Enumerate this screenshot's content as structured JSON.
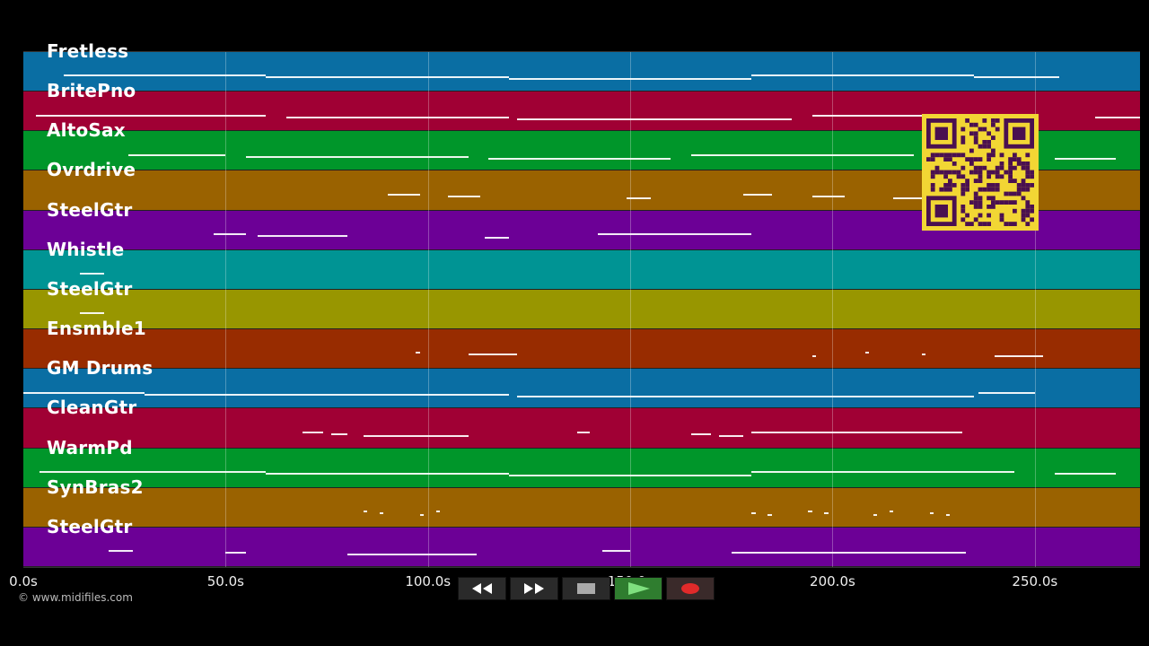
{
  "tracks": [
    {
      "name": "Fretless",
      "color": "#0a6ea3"
    },
    {
      "name": "BritePno",
      "color": "#a00034"
    },
    {
      "name": "AltoSax",
      "color": "#00962a"
    },
    {
      "name": "Ovrdrive",
      "color": "#9a6200"
    },
    {
      "name": "SteelGtr",
      "color": "#6c0096"
    },
    {
      "name": "Whistle",
      "color": "#009494"
    },
    {
      "name": "SteelGtr",
      "color": "#989600"
    },
    {
      "name": "Ensmble1",
      "color": "#982c00"
    },
    {
      "name": "GM Drums",
      "color": "#0a6ea3"
    },
    {
      "name": "CleanGtr",
      "color": "#a00034"
    },
    {
      "name": "WarmPd",
      "color": "#00962a"
    },
    {
      "name": "SynBras2",
      "color": "#9a6200"
    },
    {
      "name": "SteelGtr",
      "color": "#6c0096"
    }
  ],
  "timeline": {
    "max_seconds": 276,
    "ticks": [
      "0.0s",
      "50.0s",
      "100.0s",
      "150.0s",
      "200.0s",
      "250.0s"
    ],
    "tick_values": [
      0,
      50,
      100,
      150,
      200,
      250
    ]
  },
  "notes": [
    [
      [
        10,
        60
      ],
      [
        60,
        120
      ],
      [
        120,
        180
      ],
      [
        180,
        235
      ],
      [
        235,
        256
      ]
    ],
    [
      [
        3,
        60
      ],
      [
        65,
        120
      ],
      [
        122,
        190
      ],
      [
        195,
        250
      ],
      [
        265,
        276
      ]
    ],
    [
      [
        26,
        50
      ],
      [
        55,
        110
      ],
      [
        115,
        160
      ],
      [
        165,
        220
      ],
      [
        230,
        250
      ],
      [
        255,
        270
      ]
    ],
    [
      [
        90,
        98
      ],
      [
        105,
        113
      ],
      [
        149,
        155
      ],
      [
        178,
        185
      ],
      [
        195,
        203
      ],
      [
        215,
        222
      ]
    ],
    [
      [
        47,
        55
      ],
      [
        58,
        80
      ],
      [
        114,
        120
      ],
      [
        142,
        180
      ]
    ],
    [
      [
        14,
        20
      ]
    ],
    [
      [
        14,
        20
      ]
    ],
    [
      [
        97,
        98
      ],
      [
        110,
        122
      ],
      [
        195,
        196
      ],
      [
        208,
        209
      ],
      [
        222,
        223
      ],
      [
        240,
        252
      ]
    ],
    [
      [
        0,
        30
      ],
      [
        30,
        120
      ],
      [
        122,
        235
      ],
      [
        236,
        250
      ]
    ],
    [
      [
        69,
        74
      ],
      [
        76,
        80
      ],
      [
        84,
        110
      ],
      [
        137,
        140
      ],
      [
        165,
        170
      ],
      [
        172,
        178
      ],
      [
        180,
        232
      ]
    ],
    [
      [
        4,
        60
      ],
      [
        60,
        120
      ],
      [
        120,
        180
      ],
      [
        180,
        245
      ],
      [
        255,
        270
      ]
    ],
    [
      [
        84,
        85
      ],
      [
        88,
        89
      ],
      [
        98,
        99
      ],
      [
        102,
        103
      ],
      [
        180,
        181
      ],
      [
        184,
        185
      ],
      [
        194,
        195
      ],
      [
        198,
        199
      ],
      [
        210,
        211
      ],
      [
        214,
        215
      ],
      [
        224,
        225
      ],
      [
        228,
        229
      ]
    ],
    [
      [
        21,
        27
      ],
      [
        50,
        55
      ],
      [
        80,
        112
      ],
      [
        143,
        150
      ],
      [
        175,
        233
      ]
    ]
  ],
  "controls": {
    "rewind": "rewind-icon",
    "fast_forward": "fast-forward-icon",
    "stop": "stop-icon",
    "play": "play-icon",
    "record": "record-icon"
  },
  "copyright": "© www.midifiles.com"
}
